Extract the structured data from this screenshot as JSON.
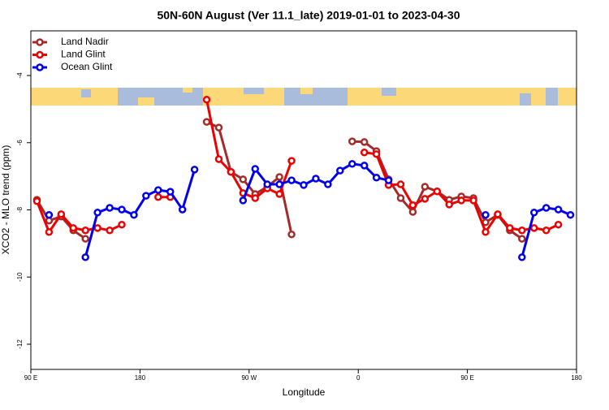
{
  "chart_data": {
    "type": "line",
    "title": "50N-60N August (Ver 11.1_late)   2019-01-01 to 2023-04-30",
    "x_label": "Longitude",
    "y_label": "XCO2 - MLO trend (ppm)",
    "xlim": [
      90,
      540
    ],
    "ylim": [
      -12.75,
      -2.67
    ],
    "xticks": [
      {
        "value": 90,
        "label": "90 E"
      },
      180,
      {
        "value": 270,
        "label": "90 W"
      },
      {
        "value": 360,
        "label": "0"
      },
      {
        "value": 450,
        "label": "90 E"
      },
      {
        "value": 540,
        "label": "180"
      }
    ],
    "yticks": [
      -4,
      -6,
      -8,
      -10,
      -12
    ],
    "legend": "top-left",
    "x": [
      95,
      105,
      115,
      125,
      135,
      145,
      155,
      165,
      175,
      185,
      195,
      205,
      215,
      225,
      235,
      245,
      255,
      265,
      275,
      285,
      295,
      305,
      315,
      325,
      335,
      345,
      355,
      365,
      375,
      385,
      395,
      405,
      415,
      425,
      435,
      445,
      455,
      465,
      475,
      485,
      495,
      505,
      515,
      525,
      535
    ],
    "series": [
      {
        "name": "Land Nadir",
        "color": "#a52a2a",
        "values": [
          -7.7,
          -8.32,
          -8.2,
          -8.61,
          -8.86,
          null,
          null,
          null,
          null,
          null,
          null,
          null,
          null,
          null,
          -5.38,
          -5.55,
          -6.87,
          -7.09,
          -7.53,
          -7.31,
          -7.02,
          -8.73,
          null,
          null,
          null,
          null,
          -5.96,
          -5.98,
          -6.25,
          -7.09,
          -7.65,
          -8.06,
          -7.31,
          -7.45,
          -7.7,
          -7.6,
          -7.65,
          -8.37,
          -8.15,
          -8.61,
          -8.86,
          null,
          null,
          null,
          null
        ]
      },
      {
        "name": "Land Glint",
        "color": "#ee0000",
        "values": [
          -7.74,
          -8.66,
          -8.13,
          -8.54,
          -8.61,
          -8.54,
          -8.61,
          -8.44,
          null,
          null,
          -7.62,
          -7.62,
          null,
          null,
          -4.72,
          -6.49,
          -6.87,
          -7.5,
          -7.65,
          -7.36,
          -7.53,
          -6.54,
          null,
          null,
          null,
          null,
          null,
          -6.29,
          -6.34,
          -7.26,
          -7.24,
          -7.86,
          -7.67,
          -7.45,
          -7.84,
          -7.72,
          -7.72,
          -8.66,
          -8.13,
          -8.54,
          -8.61,
          -8.54,
          -8.61,
          -8.44,
          null
        ]
      },
      {
        "name": "Ocean Glint",
        "color": "#0000ee",
        "values": [
          null,
          -8.15,
          null,
          null,
          -9.41,
          -8.08,
          -7.94,
          -7.99,
          -8.15,
          -7.58,
          -7.41,
          -7.46,
          -7.99,
          -6.8,
          null,
          null,
          null,
          -7.72,
          -6.78,
          -7.24,
          -7.24,
          -7.12,
          -7.26,
          -7.07,
          -7.24,
          -6.83,
          -6.63,
          -6.68,
          -7.04,
          -7.12,
          null,
          null,
          null,
          null,
          null,
          null,
          null,
          -8.15,
          null,
          null,
          -9.41,
          -8.08,
          -7.94,
          -7.99,
          -8.15
        ]
      }
    ]
  }
}
